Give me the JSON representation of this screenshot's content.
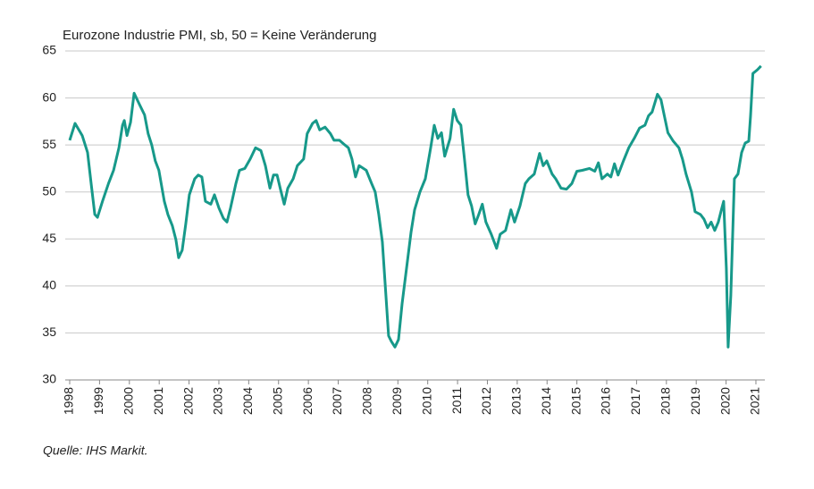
{
  "chart_data": {
    "type": "line",
    "title": "Eurozone Industrie PMI, sb, 50 = Keine Veränderung",
    "source": "Quelle: IHS Markit.",
    "x": [
      1998.0,
      1998.18,
      1998.42,
      1998.6,
      1998.72,
      1998.84,
      1998.93,
      1999.1,
      1999.3,
      1999.47,
      1999.65,
      1999.77,
      1999.83,
      1999.92,
      2000.04,
      2000.16,
      2000.34,
      2000.51,
      2000.63,
      2000.75,
      2000.87,
      2000.99,
      2001.17,
      2001.29,
      2001.44,
      2001.56,
      2001.65,
      2001.77,
      2001.89,
      2002.01,
      2002.19,
      2002.31,
      2002.43,
      2002.55,
      2002.73,
      2002.85,
      2003.0,
      2003.15,
      2003.27,
      2003.39,
      2003.57,
      2003.69,
      2003.87,
      2004.05,
      2004.23,
      2004.41,
      2004.56,
      2004.71,
      2004.83,
      2004.95,
      2005.07,
      2005.19,
      2005.31,
      2005.49,
      2005.63,
      2005.84,
      2005.96,
      2006.14,
      2006.26,
      2006.38,
      2006.56,
      2006.74,
      2006.86,
      2007.04,
      2007.22,
      2007.34,
      2007.46,
      2007.58,
      2007.7,
      2007.94,
      2008.12,
      2008.24,
      2008.36,
      2008.48,
      2008.6,
      2008.69,
      2008.78,
      2008.9,
      2009.02,
      2009.14,
      2009.29,
      2009.44,
      2009.56,
      2009.74,
      2009.92,
      2010.1,
      2010.22,
      2010.34,
      2010.46,
      2010.57,
      2010.75,
      2010.87,
      2010.99,
      2011.11,
      2011.23,
      2011.35,
      2011.47,
      2011.59,
      2011.71,
      2011.83,
      2011.95,
      2012.13,
      2012.31,
      2012.43,
      2012.61,
      2012.79,
      2012.91,
      2013.09,
      2013.27,
      2013.39,
      2013.57,
      2013.75,
      2013.87,
      2013.99,
      2014.17,
      2014.29,
      2014.47,
      2014.65,
      2014.83,
      2015.0,
      2015.18,
      2015.42,
      2015.6,
      2015.72,
      2015.84,
      2016.02,
      2016.14,
      2016.26,
      2016.38,
      2016.56,
      2016.74,
      2016.92,
      2017.1,
      2017.28,
      2017.4,
      2017.52,
      2017.7,
      2017.82,
      2017.93,
      2018.05,
      2018.23,
      2018.42,
      2018.54,
      2018.66,
      2018.84,
      2018.96,
      2019.14,
      2019.26,
      2019.38,
      2019.5,
      2019.62,
      2019.74,
      2019.86,
      2019.92,
      2020.01,
      2020.07,
      2020.16,
      2020.28,
      2020.4,
      2020.52,
      2020.64,
      2020.76,
      2020.82,
      2020.9,
      2021.05,
      2021.17
    ],
    "series": [
      {
        "color": "#17998a",
        "values": [
          55.5,
          57.3,
          56,
          54.2,
          50.9,
          47.6,
          47.3,
          49,
          50.9,
          52.3,
          54.7,
          57.1,
          57.6,
          56,
          57.4,
          60.5,
          59.3,
          58.2,
          56.2,
          55,
          53.3,
          52.3,
          49,
          47.6,
          46.4,
          44.9,
          43,
          43.8,
          46.6,
          49.7,
          51.4,
          51.8,
          51.6,
          49,
          48.7,
          49.7,
          48.3,
          47.2,
          46.8,
          48.3,
          50.9,
          52.3,
          52.5,
          53.5,
          54.7,
          54.4,
          52.8,
          50.4,
          51.8,
          51.8,
          50.2,
          48.7,
          50.4,
          51.4,
          52.8,
          53.5,
          56.2,
          57.3,
          57.6,
          56.6,
          56.9,
          56.2,
          55.5,
          55.5,
          55,
          54.7,
          53.5,
          51.6,
          52.8,
          52.3,
          50.9,
          50,
          47.6,
          44.7,
          39,
          34.7,
          34.1,
          33.5,
          34.3,
          38.1,
          41.9,
          45.7,
          48.1,
          50,
          51.4,
          54.7,
          57.1,
          55.7,
          56.3,
          53.8,
          55.7,
          58.8,
          57.6,
          57.1,
          53.5,
          49.7,
          48.5,
          46.6,
          47.6,
          48.7,
          46.8,
          45.5,
          44,
          45.5,
          45.9,
          48.1,
          46.8,
          48.5,
          50.9,
          51.4,
          51.9,
          54.1,
          52.8,
          53.3,
          51.9,
          51.4,
          50.4,
          50.3,
          50.9,
          52.2,
          52.3,
          52.5,
          52.2,
          53.1,
          51.4,
          51.9,
          51.6,
          53,
          51.8,
          53.3,
          54.7,
          55.7,
          56.8,
          57.1,
          58.1,
          58.5,
          60.4,
          59.8,
          58.1,
          56.3,
          55.4,
          54.7,
          53.5,
          51.9,
          50,
          47.9,
          47.6,
          47.1,
          46.2,
          46.8,
          45.9,
          46.8,
          48.3,
          49,
          41.9,
          33.5,
          39,
          51.4,
          51.9,
          54.2,
          55.2,
          55.4,
          58.1,
          62.6,
          63,
          63.4
        ]
      }
    ],
    "xlim": [
      1997.85,
      2021.3
    ],
    "xticks": [
      1998,
      1999,
      2000,
      2001,
      2002,
      2003,
      2004,
      2005,
      2006,
      2007,
      2008,
      2009,
      2010,
      2011,
      2012,
      2013,
      2014,
      2015,
      2016,
      2017,
      2018,
      2019,
      2020,
      2021
    ],
    "ylim": [
      30,
      65
    ],
    "yticks": [
      30,
      35,
      40,
      45,
      50,
      55,
      60,
      65
    ],
    "grid": true
  }
}
